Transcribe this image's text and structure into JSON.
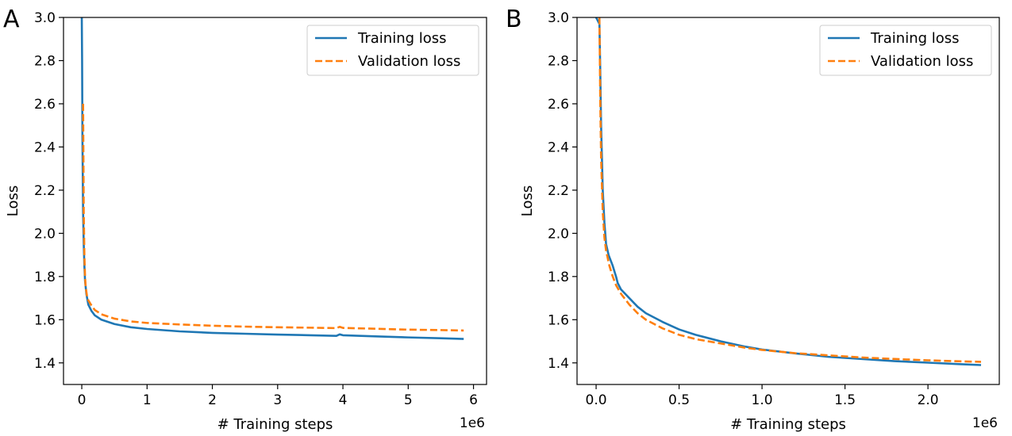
{
  "chart_data": [
    {
      "panel": "A",
      "type": "line",
      "xlabel": "# Training steps",
      "ylabel": "Loss",
      "x_offset_text": "1e6",
      "xlim": [
        -0.28,
        6.2
      ],
      "ylim": [
        1.3,
        3.0
      ],
      "xticks": [
        0,
        1,
        2,
        3,
        4,
        5,
        6
      ],
      "xtick_labels": [
        "0",
        "1",
        "2",
        "3",
        "4",
        "5",
        "6"
      ],
      "yticks": [
        1.4,
        1.6,
        1.8,
        2.0,
        2.2,
        2.4,
        2.6,
        2.8,
        3.0
      ],
      "ytick_labels": [
        "1.4",
        "1.6",
        "1.8",
        "2.0",
        "2.2",
        "2.4",
        "2.6",
        "2.8",
        "3.0"
      ],
      "legend_position": "top-right",
      "series": [
        {
          "name": "Training loss",
          "color": "#1f77b4",
          "dash": "solid",
          "x": [
            0.0,
            0.005,
            0.01,
            0.02,
            0.03,
            0.04,
            0.05,
            0.07,
            0.1,
            0.15,
            0.2,
            0.3,
            0.5,
            0.75,
            1.0,
            1.5,
            2.0,
            2.5,
            3.0,
            3.5,
            3.9,
            3.95,
            4.0,
            4.5,
            5.0,
            5.5,
            5.85
          ],
          "y": [
            3.0,
            2.8,
            2.45,
            2.1,
            1.95,
            1.85,
            1.78,
            1.72,
            1.67,
            1.64,
            1.62,
            1.6,
            1.58,
            1.565,
            1.557,
            1.546,
            1.539,
            1.535,
            1.531,
            1.528,
            1.525,
            1.532,
            1.528,
            1.523,
            1.518,
            1.514,
            1.511
          ]
        },
        {
          "name": "Validation loss",
          "color": "#ff7f0e",
          "dash": "dashed",
          "x": [
            0.02,
            0.03,
            0.04,
            0.05,
            0.06,
            0.08,
            0.1,
            0.15,
            0.2,
            0.3,
            0.5,
            0.75,
            1.0,
            1.5,
            2.0,
            2.5,
            3.0,
            3.5,
            3.9,
            3.95,
            4.0,
            4.5,
            5.0,
            5.5,
            5.85
          ],
          "y": [
            2.6,
            2.1,
            1.9,
            1.8,
            1.75,
            1.71,
            1.69,
            1.665,
            1.645,
            1.625,
            1.605,
            1.592,
            1.585,
            1.578,
            1.572,
            1.568,
            1.565,
            1.563,
            1.561,
            1.567,
            1.562,
            1.558,
            1.554,
            1.552,
            1.55
          ]
        }
      ]
    },
    {
      "panel": "B",
      "type": "line",
      "xlabel": "# Training steps",
      "ylabel": "Loss",
      "x_offset_text": "1e6",
      "xlim": [
        -0.115,
        2.43
      ],
      "ylim": [
        1.3,
        3.0
      ],
      "xticks": [
        0.0,
        0.5,
        1.0,
        1.5,
        2.0
      ],
      "xtick_labels": [
        "0.0",
        "0.5",
        "1.0",
        "1.5",
        "2.0"
      ],
      "yticks": [
        1.4,
        1.6,
        1.8,
        2.0,
        2.2,
        2.4,
        2.6,
        2.8,
        3.0
      ],
      "ytick_labels": [
        "1.4",
        "1.6",
        "1.8",
        "2.0",
        "2.2",
        "2.4",
        "2.6",
        "2.8",
        "3.0"
      ],
      "legend_position": "top-right",
      "series": [
        {
          "name": "Training loss",
          "color": "#1f77b4",
          "dash": "solid",
          "x": [
            0.0,
            0.02,
            0.025,
            0.03,
            0.04,
            0.05,
            0.06,
            0.075,
            0.1,
            0.12,
            0.13,
            0.15,
            0.2,
            0.25,
            0.3,
            0.4,
            0.5,
            0.6,
            0.75,
            0.9,
            1.0,
            1.2,
            1.4,
            1.6,
            1.8,
            2.0,
            2.2,
            2.32
          ],
          "y": [
            3.0,
            2.97,
            2.75,
            2.5,
            2.2,
            2.05,
            1.95,
            1.9,
            1.85,
            1.8,
            1.77,
            1.74,
            1.7,
            1.66,
            1.63,
            1.59,
            1.555,
            1.53,
            1.5,
            1.475,
            1.462,
            1.444,
            1.428,
            1.418,
            1.408,
            1.401,
            1.394,
            1.39
          ]
        },
        {
          "name": "Validation loss",
          "color": "#ff7f0e",
          "dash": "dashed",
          "x": [
            0.02,
            0.025,
            0.03,
            0.04,
            0.05,
            0.06,
            0.08,
            0.1,
            0.12,
            0.15,
            0.2,
            0.25,
            0.3,
            0.4,
            0.5,
            0.6,
            0.75,
            0.9,
            1.0,
            1.2,
            1.4,
            1.6,
            1.8,
            2.0,
            2.2,
            2.32
          ],
          "y": [
            3.0,
            2.6,
            2.35,
            2.1,
            1.98,
            1.92,
            1.85,
            1.8,
            1.76,
            1.72,
            1.67,
            1.63,
            1.6,
            1.56,
            1.53,
            1.51,
            1.49,
            1.47,
            1.46,
            1.445,
            1.435,
            1.425,
            1.418,
            1.412,
            1.407,
            1.405
          ]
        }
      ]
    }
  ]
}
